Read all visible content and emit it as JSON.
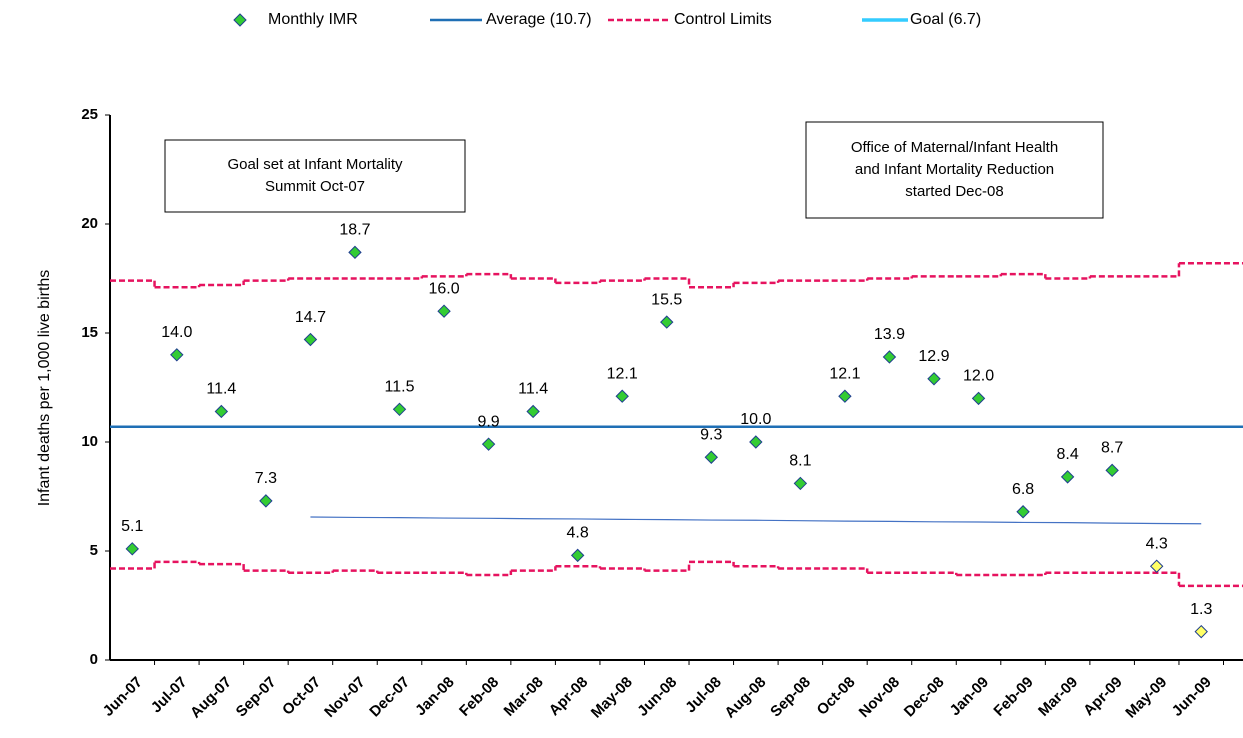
{
  "chart_data": {
    "type": "control",
    "y_label": "Infant deaths per 1,000 live births",
    "categories": [
      "Jun-07",
      "Jul-07",
      "Aug-07",
      "Sep-07",
      "Oct-07",
      "Nov-07",
      "Dec-07",
      "Jan-08",
      "Feb-08",
      "Mar-08",
      "Apr-08",
      "May-08",
      "Jun-08",
      "Jul-08",
      "Aug-08",
      "Sep-08",
      "Oct-08",
      "Nov-08",
      "Dec-08",
      "Jan-09",
      "Feb-09",
      "Mar-09",
      "Apr-09",
      "May-09",
      "Jun-09"
    ],
    "series": [
      {
        "name": "Monthly IMR",
        "color": "#33cc33",
        "values": [
          5.1,
          14.0,
          11.4,
          7.3,
          14.7,
          18.7,
          11.5,
          16.0,
          9.9,
          11.4,
          4.8,
          12.1,
          15.5,
          9.3,
          10.0,
          8.1,
          12.1,
          13.9,
          12.9,
          12.0,
          6.8,
          8.4,
          8.7,
          4.3,
          1.3
        ],
        "value_labels": [
          "5.1",
          "14.0",
          "11.4",
          "7.3",
          "14.7",
          "18.7",
          "11.5",
          "16.0",
          "9.9",
          "11.4",
          "4.8",
          "12.1",
          "15.5",
          "9.3",
          "10.0",
          "8.1",
          "12.1",
          "13.9",
          "12.9",
          "12.0",
          "6.8",
          "8.4",
          "8.7",
          "4.3",
          "1.3"
        ],
        "colors": [
          "#33cc33",
          "#33cc33",
          "#33cc33",
          "#33cc33",
          "#33cc33",
          "#33cc33",
          "#33cc33",
          "#33cc33",
          "#33cc33",
          "#33cc33",
          "#33cc33",
          "#33cc33",
          "#33cc33",
          "#33cc33",
          "#33cc33",
          "#33cc33",
          "#33cc33",
          "#33cc33",
          "#33cc33",
          "#33cc33",
          "#33cc33",
          "#33cc33",
          "#33cc33",
          "#ffff66",
          "#ffff66"
        ]
      }
    ],
    "average": {
      "name": "Average (10.7)",
      "color": "#1f6fb5",
      "value": 10.7
    },
    "control_limits": {
      "name": "Control Limits",
      "color": "#e6135f",
      "upper": [
        17.4,
        17.1,
        17.2,
        17.4,
        17.5,
        17.5,
        17.5,
        17.6,
        17.7,
        17.5,
        17.3,
        17.4,
        17.5,
        17.1,
        17.3,
        17.4,
        17.4,
        17.5,
        17.6,
        17.6,
        17.7,
        17.5,
        17.6,
        17.6,
        18.2
      ],
      "lower": [
        4.2,
        4.5,
        4.4,
        4.1,
        4.0,
        4.1,
        4.0,
        4.0,
        3.9,
        4.1,
        4.3,
        4.2,
        4.1,
        4.5,
        4.3,
        4.2,
        4.2,
        4.0,
        4.0,
        3.9,
        3.9,
        4.0,
        4.0,
        4.0,
        3.4
      ]
    },
    "goal": {
      "name": "Goal (6.7)",
      "color": "#33ccff",
      "line_color": "#4472c4",
      "values": [
        null,
        null,
        null,
        null,
        6.56,
        6.54,
        6.53,
        6.51,
        6.5,
        6.48,
        6.47,
        6.45,
        6.44,
        6.42,
        6.41,
        6.39,
        6.37,
        6.36,
        6.34,
        6.33,
        6.31,
        6.3,
        6.28,
        6.26,
        6.25
      ]
    },
    "annotations": [
      {
        "lines": [
          "Goal set at Infant Mortality",
          "Summit Oct-07"
        ]
      },
      {
        "lines": [
          "Office of Maternal/Infant Health",
          "and Infant Mortality Reduction",
          "started Dec-08"
        ]
      }
    ],
    "ylim": [
      0,
      25
    ],
    "yticks": [
      0,
      5,
      10,
      15,
      20,
      25
    ],
    "grid": false
  }
}
